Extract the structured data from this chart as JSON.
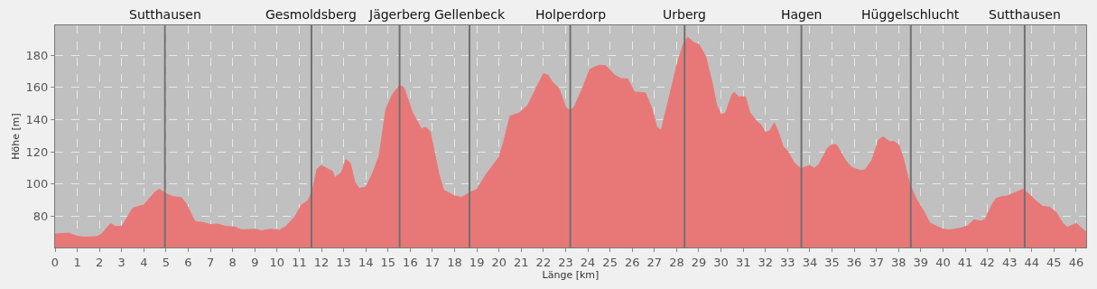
{
  "chart_data": {
    "type": "area",
    "xlabel": "Länge [km]",
    "ylabel": "Höhe [m]",
    "x": [
      0,
      0.6,
      1.0,
      1.3,
      1.9,
      2.1,
      2.5,
      2.7,
      3.0,
      3.5,
      3.8,
      4.0,
      4.5,
      4.7,
      5.0,
      5.3,
      5.7,
      5.9,
      6.3,
      6.7,
      7.0,
      7.3,
      7.7,
      8.1,
      8.4,
      9.0,
      9.3,
      9.7,
      10.1,
      10.4,
      10.8,
      11.1,
      11.4,
      11.6,
      11.8,
      12.0,
      12.5,
      12.6,
      12.9,
      13.1,
      13.3,
      13.5,
      13.7,
      14.0,
      14.3,
      14.6,
      14.9,
      15.2,
      15.5,
      15.7,
      16.1,
      16.5,
      16.7,
      16.9,
      17.3,
      17.5,
      18.0,
      18.3,
      18.7,
      19.0,
      19.4,
      20.0,
      20.2,
      20.5,
      20.9,
      21.3,
      21.6,
      22.0,
      22.2,
      22.4,
      22.7,
      23.0,
      23.2,
      23.4,
      23.8,
      24.1,
      24.5,
      24.8,
      25.2,
      25.5,
      25.8,
      26.1,
      26.6,
      26.9,
      27.1,
      27.3,
      27.6,
      28.0,
      28.3,
      28.5,
      28.8,
      29.0,
      29.3,
      29.6,
      29.8,
      30.0,
      30.2,
      30.5,
      30.6,
      30.8,
      31.1,
      31.3,
      31.6,
      31.8,
      32.0,
      32.2,
      32.4,
      32.6,
      32.8,
      33.0,
      33.3,
      33.6,
      34.0,
      34.2,
      34.4,
      34.8,
      35.0,
      35.2,
      35.6,
      35.9,
      36.3,
      36.5,
      36.8,
      37.1,
      37.3,
      37.6,
      37.8,
      38.0,
      38.2,
      38.5,
      38.8,
      39.2,
      39.4,
      40.0,
      40.3,
      40.8,
      41.1,
      41.4,
      41.7,
      41.9,
      42.2,
      42.4,
      42.6,
      42.9,
      43.2,
      43.6,
      43.9,
      44.2,
      44.5,
      44.8,
      45.1,
      45.4,
      45.6,
      46.0,
      46.4,
      46.45
    ],
    "values": [
      69,
      69.5,
      67.6,
      67,
      67.4,
      69,
      75.5,
      73.7,
      73.7,
      85,
      86.3,
      87,
      95,
      96.7,
      94,
      92.2,
      91.5,
      88,
      76.7,
      76,
      74.8,
      75.2,
      73.7,
      73.3,
      71.5,
      71.9,
      71,
      71.9,
      71.3,
      73.7,
      79.6,
      87,
      89.8,
      96.3,
      109.3,
      111.5,
      107.8,
      104,
      107,
      115.2,
      113,
      101.3,
      97.2,
      98.1,
      106.5,
      117.6,
      146.3,
      155.6,
      161,
      160.2,
      144.4,
      134.3,
      135.2,
      132.4,
      105.6,
      96.3,
      92.6,
      91.7,
      94.8,
      96.7,
      105.6,
      116.7,
      125.9,
      142.2,
      144,
      149,
      157.4,
      168.5,
      167.6,
      163.3,
      159.3,
      147.8,
      145.4,
      148.1,
      161,
      171.3,
      173.7,
      173.5,
      167.6,
      165.4,
      165.2,
      157,
      156.5,
      146.3,
      135.6,
      133.3,
      150,
      173.1,
      187,
      191.1,
      187.6,
      186.7,
      179.6,
      163,
      149.1,
      143,
      144,
      155.6,
      156.9,
      154.1,
      154.1,
      144.4,
      138.9,
      136.7,
      131.9,
      133,
      138,
      131.5,
      123.1,
      120.4,
      113,
      109.6,
      111.5,
      109.8,
      112,
      122.2,
      124.4,
      124.4,
      114.8,
      110.2,
      108.3,
      108.9,
      114.8,
      127.4,
      129.3,
      126.3,
      126.3,
      124.4,
      116.7,
      100,
      90.7,
      81.5,
      75.9,
      71.9,
      71.5,
      72.6,
      74,
      77.8,
      76.9,
      78.1,
      87,
      91.1,
      92,
      92.6,
      94.4,
      96.7,
      93.5,
      89.3,
      86.1,
      85.6,
      82.4,
      75.6,
      73.1,
      75.6,
      70.7,
      70.4
    ],
    "color": "#e87878",
    "xlim": [
      0,
      46.45
    ],
    "ylim": [
      60.6,
      198.5
    ],
    "xticks": [
      0,
      1,
      2,
      3,
      4,
      5,
      6,
      7,
      8,
      9,
      10,
      11,
      12,
      13,
      14,
      15,
      16,
      17,
      18,
      19,
      20,
      21,
      22,
      23,
      24,
      25,
      26,
      27,
      28,
      29,
      30,
      31,
      32,
      33,
      34,
      35,
      36,
      37,
      38,
      39,
      40,
      41,
      42,
      43,
      44,
      45,
      46
    ],
    "yticks": [
      80,
      100,
      120,
      140,
      160,
      180
    ],
    "grid": true,
    "ref_lines": [
      {
        "axis": "x",
        "value": 4.95,
        "label": "Sutthausen",
        "color": "#707070"
      },
      {
        "axis": "x",
        "value": 11.55,
        "label": "Gesmoldsberg",
        "color": "#707070"
      },
      {
        "axis": "x",
        "value": 15.52,
        "label": "Jägerberg",
        "color": "#707070"
      },
      {
        "axis": "x",
        "value": 18.67,
        "label": "Gellenbeck",
        "color": "#707070"
      },
      {
        "axis": "x",
        "value": 23.21,
        "label": "Holperdorp",
        "color": "#707070"
      },
      {
        "axis": "x",
        "value": 28.36,
        "label": "Urberg",
        "color": "#707070"
      },
      {
        "axis": "x",
        "value": 33.62,
        "label": "Hagen",
        "color": "#707070"
      },
      {
        "axis": "x",
        "value": 38.55,
        "label": "Hüggelschlucht",
        "color": "#707070"
      },
      {
        "axis": "x",
        "value": 43.68,
        "label": "Sutthausen",
        "color": "#707070"
      }
    ]
  }
}
